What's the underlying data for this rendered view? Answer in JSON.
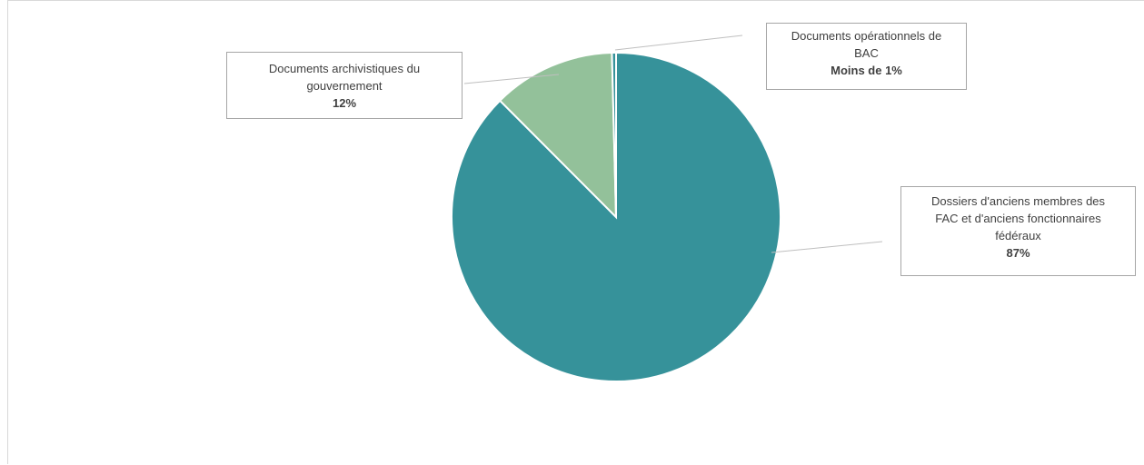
{
  "chart_data": {
    "type": "pie",
    "title": "",
    "categories": [
      "Dossiers d'anciens membres des FAC et d'anciens fonctionnaires fédéraux",
      "Documents archivistiques du gouvernement",
      "Documents opérationnels de BAC"
    ],
    "values": [
      87,
      12,
      0.4
    ],
    "colors": [
      "#36929A",
      "#93C19A",
      "#36929A"
    ],
    "data_labels": [
      {
        "category_lines": [
          "Dossiers d'anciens membres des",
          "FAC et d'anciens fonctionnaires",
          "fédéraux"
        ],
        "value_text": "87%"
      },
      {
        "category_lines": [
          "Documents archivistiques du",
          "gouvernement"
        ],
        "value_text": "12%"
      },
      {
        "category_lines": [
          "Documents opérationnels de",
          "BAC"
        ],
        "value_text": "Moins de 1%"
      }
    ],
    "legend": "none",
    "start_angle": "12 o'clock, clockwise"
  }
}
